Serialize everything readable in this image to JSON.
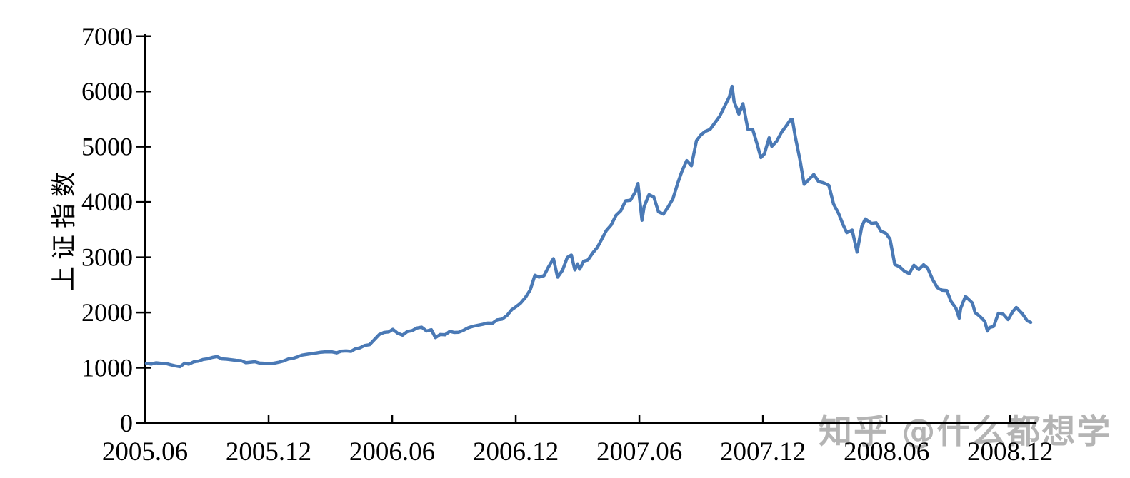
{
  "page": {
    "background": "#ffffff"
  },
  "watermark": {
    "text": "知乎 @什么都想学",
    "color": "#b4b4b4"
  },
  "chart_data": {
    "type": "line",
    "title": "",
    "xlabel": "",
    "ylabel": "上证指数",
    "x_unit_note": "x values are months after 2005.06",
    "ylim": [
      0,
      7000
    ],
    "xlim": [
      0,
      43.25
    ],
    "grid": false,
    "legend": "none",
    "axis_color": "#000000",
    "y_ticks": [
      {
        "v": 0,
        "label": "0"
      },
      {
        "v": 1000,
        "label": "1000"
      },
      {
        "v": 2000,
        "label": "2000"
      },
      {
        "v": 3000,
        "label": "3000"
      },
      {
        "v": 4000,
        "label": "4000"
      },
      {
        "v": 5000,
        "label": "5000"
      },
      {
        "v": 6000,
        "label": "6000"
      },
      {
        "v": 7000,
        "label": "7000"
      }
    ],
    "x_ticks": [
      {
        "m": 0,
        "label": "2005.06"
      },
      {
        "m": 6,
        "label": "2005.12"
      },
      {
        "m": 12,
        "label": "2006.06"
      },
      {
        "m": 18,
        "label": "2006.12"
      },
      {
        "m": 24,
        "label": "2007.06"
      },
      {
        "m": 30,
        "label": "2007.12"
      },
      {
        "m": 36,
        "label": "2008.06"
      },
      {
        "m": 42,
        "label": "2008.12"
      }
    ],
    "series": [
      {
        "name": "上证指数",
        "color": "#4a79b5",
        "stroke_width": 4.5,
        "points": [
          [
            0.07,
            1081
          ],
          [
            0.3,
            1067
          ],
          [
            0.53,
            1091
          ],
          [
            0.77,
            1082
          ],
          [
            1.0,
            1080
          ],
          [
            1.23,
            1056
          ],
          [
            1.47,
            1035
          ],
          [
            1.7,
            1021
          ],
          [
            1.93,
            1083
          ],
          [
            2.13,
            1066
          ],
          [
            2.37,
            1109
          ],
          [
            2.6,
            1122
          ],
          [
            2.83,
            1151
          ],
          [
            3.03,
            1162
          ],
          [
            3.27,
            1188
          ],
          [
            3.5,
            1203
          ],
          [
            3.73,
            1160
          ],
          [
            3.97,
            1155
          ],
          [
            4.43,
            1135
          ],
          [
            4.67,
            1129
          ],
          [
            4.9,
            1092
          ],
          [
            5.1,
            1100
          ],
          [
            5.33,
            1110
          ],
          [
            5.57,
            1086
          ],
          [
            5.8,
            1082
          ],
          [
            6.03,
            1075
          ],
          [
            6.27,
            1085
          ],
          [
            6.5,
            1101
          ],
          [
            6.73,
            1125
          ],
          [
            6.97,
            1161
          ],
          [
            7.17,
            1170
          ],
          [
            7.4,
            1198
          ],
          [
            7.63,
            1230
          ],
          [
            7.87,
            1245
          ],
          [
            8.3,
            1268
          ],
          [
            8.53,
            1282
          ],
          [
            8.77,
            1290
          ],
          [
            9.07,
            1288
          ],
          [
            9.3,
            1270
          ],
          [
            9.53,
            1300
          ],
          [
            9.77,
            1305
          ],
          [
            10.0,
            1298
          ],
          [
            10.2,
            1340
          ],
          [
            10.43,
            1360
          ],
          [
            10.67,
            1405
          ],
          [
            10.9,
            1417
          ],
          [
            11.37,
            1602
          ],
          [
            11.6,
            1640
          ],
          [
            11.83,
            1649
          ],
          [
            12.03,
            1695
          ],
          [
            12.27,
            1625
          ],
          [
            12.5,
            1590
          ],
          [
            12.73,
            1655
          ],
          [
            12.97,
            1672
          ],
          [
            13.2,
            1720
          ],
          [
            13.43,
            1735
          ],
          [
            13.67,
            1665
          ],
          [
            13.9,
            1690
          ],
          [
            14.1,
            1547
          ],
          [
            14.33,
            1602
          ],
          [
            14.57,
            1598
          ],
          [
            14.8,
            1660
          ],
          [
            15.0,
            1639
          ],
          [
            15.23,
            1643
          ],
          [
            15.47,
            1680
          ],
          [
            15.7,
            1725
          ],
          [
            15.93,
            1752
          ],
          [
            16.4,
            1786
          ],
          [
            16.63,
            1808
          ],
          [
            16.87,
            1807
          ],
          [
            17.1,
            1868
          ],
          [
            17.33,
            1879
          ],
          [
            17.57,
            1945
          ],
          [
            17.8,
            2050
          ],
          [
            18.0,
            2102
          ],
          [
            18.23,
            2167
          ],
          [
            18.47,
            2273
          ],
          [
            18.7,
            2410
          ],
          [
            18.93,
            2675
          ],
          [
            19.13,
            2641
          ],
          [
            19.37,
            2668
          ],
          [
            19.6,
            2832
          ],
          [
            19.83,
            2975
          ],
          [
            20.03,
            2640
          ],
          [
            20.27,
            2764
          ],
          [
            20.5,
            2998
          ],
          [
            20.7,
            3040
          ],
          [
            20.87,
            2772
          ],
          [
            21.0,
            2881
          ],
          [
            21.1,
            2785
          ],
          [
            21.3,
            2930
          ],
          [
            21.5,
            2950
          ],
          [
            21.73,
            3075
          ],
          [
            21.97,
            3183
          ],
          [
            22.17,
            3323
          ],
          [
            22.4,
            3484
          ],
          [
            22.63,
            3584
          ],
          [
            22.87,
            3759
          ],
          [
            23.1,
            3841
          ],
          [
            23.33,
            4021
          ],
          [
            23.57,
            4030
          ],
          [
            23.8,
            4179
          ],
          [
            23.93,
            4335
          ],
          [
            24.13,
            3670
          ],
          [
            24.23,
            3913
          ],
          [
            24.47,
            4132
          ],
          [
            24.7,
            4091
          ],
          [
            24.93,
            3821
          ],
          [
            25.17,
            3781
          ],
          [
            25.4,
            3914
          ],
          [
            25.63,
            4058
          ],
          [
            25.87,
            4346
          ],
          [
            26.07,
            4560
          ],
          [
            26.3,
            4749
          ],
          [
            26.53,
            4656
          ],
          [
            26.77,
            5108
          ],
          [
            27.0,
            5218
          ],
          [
            27.2,
            5277
          ],
          [
            27.43,
            5312
          ],
          [
            27.67,
            5435
          ],
          [
            27.9,
            5552
          ],
          [
            28.37,
            5903
          ],
          [
            28.5,
            6092
          ],
          [
            28.6,
            5819
          ],
          [
            28.83,
            5590
          ],
          [
            29.03,
            5777
          ],
          [
            29.27,
            5315
          ],
          [
            29.5,
            5316
          ],
          [
            29.73,
            5032
          ],
          [
            29.9,
            4803
          ],
          [
            30.07,
            4870
          ],
          [
            30.3,
            5162
          ],
          [
            30.43,
            5008
          ],
          [
            30.67,
            5102
          ],
          [
            30.9,
            5262
          ],
          [
            31.1,
            5361
          ],
          [
            31.33,
            5485
          ],
          [
            31.43,
            5497
          ],
          [
            31.57,
            5180
          ],
          [
            31.8,
            4761
          ],
          [
            32.0,
            4320
          ],
          [
            32.47,
            4497
          ],
          [
            32.7,
            4370
          ],
          [
            32.93,
            4348
          ],
          [
            33.2,
            4300
          ],
          [
            33.43,
            3962
          ],
          [
            33.67,
            3796
          ],
          [
            33.9,
            3580
          ],
          [
            34.07,
            3446
          ],
          [
            34.33,
            3492
          ],
          [
            34.57,
            3094
          ],
          [
            34.8,
            3557
          ],
          [
            34.97,
            3693
          ],
          [
            35.27,
            3613
          ],
          [
            35.5,
            3624
          ],
          [
            35.73,
            3473
          ],
          [
            35.97,
            3433
          ],
          [
            36.17,
            3329
          ],
          [
            36.4,
            2868
          ],
          [
            36.63,
            2831
          ],
          [
            36.87,
            2748
          ],
          [
            37.1,
            2706
          ],
          [
            37.33,
            2856
          ],
          [
            37.57,
            2778
          ],
          [
            37.8,
            2865
          ],
          [
            38.0,
            2801
          ],
          [
            38.23,
            2605
          ],
          [
            38.47,
            2450
          ],
          [
            38.7,
            2405
          ],
          [
            38.93,
            2397
          ],
          [
            39.13,
            2202
          ],
          [
            39.37,
            2079
          ],
          [
            39.53,
            1896
          ],
          [
            39.6,
            2075
          ],
          [
            39.83,
            2293
          ],
          [
            40.17,
            2173
          ],
          [
            40.3,
            2000
          ],
          [
            40.53,
            1931
          ],
          [
            40.77,
            1839
          ],
          [
            40.9,
            1665
          ],
          [
            41.0,
            1729
          ],
          [
            41.2,
            1748
          ],
          [
            41.43,
            1986
          ],
          [
            41.67,
            1969
          ],
          [
            41.9,
            1872
          ],
          [
            42.13,
            2018
          ],
          [
            42.3,
            2091
          ],
          [
            42.6,
            1975
          ],
          [
            42.83,
            1851
          ],
          [
            43.0,
            1821
          ]
        ]
      }
    ]
  }
}
